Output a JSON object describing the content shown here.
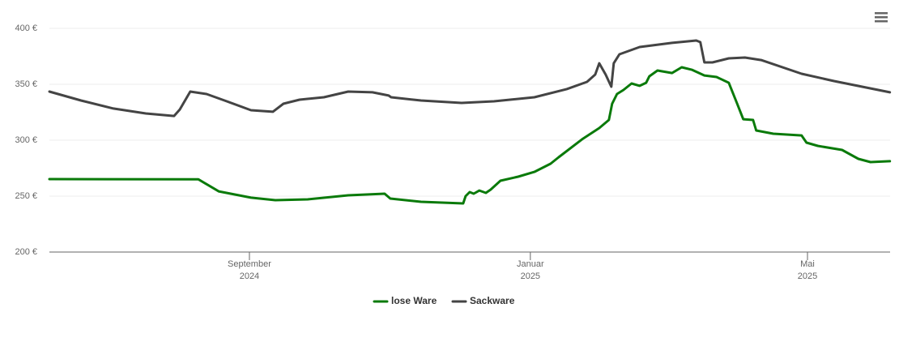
{
  "chart_data": {
    "type": "line",
    "xlim": [
      2024.4294,
      2025.4268
    ],
    "xticks": [
      {
        "value": 2024.6667,
        "label": "September"
      },
      {
        "value": 2025.0,
        "label": "Januar"
      },
      {
        "value": 2025.3288,
        "label": "Mai"
      }
    ],
    "xtick_years": [
      "2024",
      "2025",
      "2025"
    ],
    "ylim": [
      200,
      400
    ],
    "yticks": [
      {
        "value": 200,
        "label": "200 €"
      },
      {
        "value": 250,
        "label": "250 €"
      },
      {
        "value": 300,
        "label": "300 €"
      },
      {
        "value": 350,
        "label": "350 €"
      },
      {
        "value": 400,
        "label": "400 €"
      }
    ],
    "grid": true,
    "legend": "bottom",
    "series": [
      {
        "name": "lose Ware",
        "color": "#0a7a0a",
        "x": [
          2024.4294,
          2024.6062,
          2024.6302,
          2024.6686,
          2024.6974,
          2024.7358,
          2024.7839,
          2024.8271,
          2024.8338,
          2024.8703,
          2024.9203,
          2024.9232,
          2024.928,
          2024.9328,
          2024.9395,
          2024.9472,
          2024.9529,
          2024.9645,
          2024.9856,
          2025.0048,
          2025.024,
          2025.0336,
          2025.0624,
          2025.0817,
          2025.0932,
          2025.097,
          2025.1028,
          2025.1105,
          2025.1201,
          2025.1297,
          2025.1374,
          2025.1412,
          2025.1508,
          2025.1681,
          2025.1796,
          2025.1921,
          2025.2065,
          2025.2209,
          2025.2354,
          2025.245,
          2025.2526,
          2025.2642,
          2025.268,
          2025.2882,
          2025.3218,
          2025.3276,
          2025.341,
          2025.3698,
          2025.3891,
          2025.4035,
          2025.4265
        ],
        "values": [
          265.2,
          265,
          254.3,
          248.6,
          246.4,
          247.1,
          250.7,
          252.2,
          247.8,
          244.9,
          243.5,
          250,
          253.6,
          252.2,
          255,
          252.9,
          255.8,
          263.8,
          267.4,
          271.7,
          279,
          284.8,
          301.4,
          310.9,
          318.1,
          332.6,
          341.3,
          344.9,
          350.7,
          348.6,
          351.4,
          357.2,
          362.3,
          360.1,
          365.2,
          362.9,
          357.9,
          356.5,
          351.4,
          333.3,
          318.8,
          318.1,
          308.7,
          305.8,
          304.3,
          297.8,
          294.9,
          291.3,
          283.3,
          280.4,
          281.2
        ]
      },
      {
        "name": "Sackware",
        "color": "#444444",
        "x": [
          2024.4294,
          2024.4669,
          2024.5053,
          2024.5437,
          2024.5773,
          2024.5841,
          2024.5965,
          2024.6158,
          2024.6398,
          2024.6686,
          2024.6945,
          2024.707,
          2024.7262,
          2024.755,
          2024.7839,
          2024.8127,
          2024.8319,
          2024.8348,
          2024.8703,
          2024.9184,
          2024.9568,
          2025.0048,
          2025.0432,
          2025.0672,
          2025.0769,
          2025.0817,
          2025.0893,
          2025.0961,
          2025.0989,
          2025.1057,
          2025.1297,
          2025.1681,
          2025.1969,
          2025.2017,
          2025.2065,
          2025.2161,
          2025.2354,
          2025.2546,
          2025.2738,
          2025.3218,
          2025.3602,
          2025.4265
        ],
        "values": [
          343.5,
          335.5,
          328.3,
          323.9,
          321.7,
          327.5,
          343.5,
          341.3,
          334.8,
          326.8,
          325.4,
          332.6,
          336.2,
          338.4,
          343.5,
          342.8,
          339.9,
          338.4,
          335.5,
          333.3,
          334.8,
          338.4,
          345.7,
          352.2,
          358.7,
          368.8,
          358.7,
          347.8,
          368.8,
          376.8,
          383.3,
          387,
          389.1,
          387.7,
          369.6,
          369.6,
          373.2,
          373.9,
          371.7,
          359.4,
          352.9,
          342.8
        ]
      }
    ]
  }
}
